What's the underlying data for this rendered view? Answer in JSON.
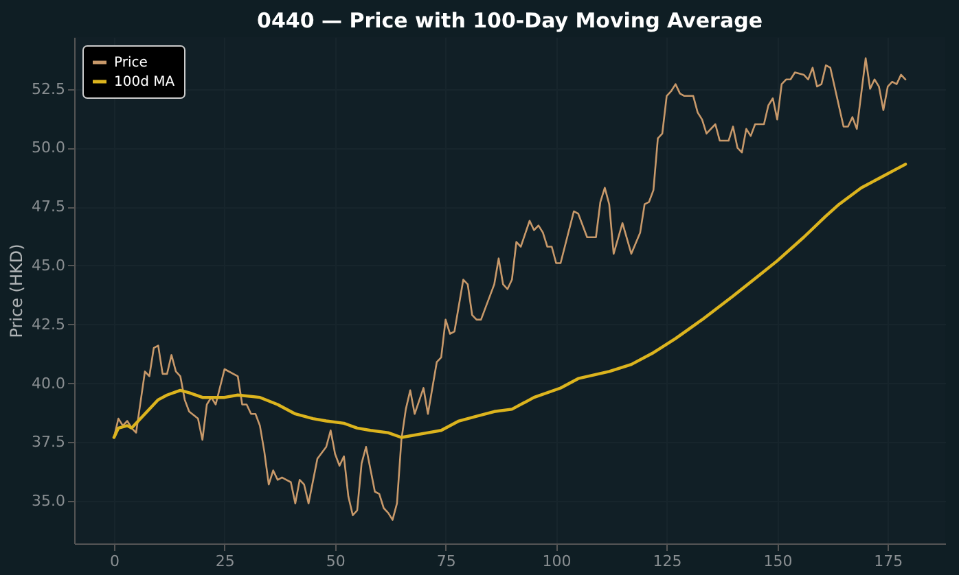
{
  "chart_data": {
    "type": "line",
    "title": "0440 — Price with 100-Day Moving Average",
    "ylabel": "Price (HKD)",
    "xlim": [
      -9,
      188
    ],
    "ylim": [
      33.2,
      54.7
    ],
    "xticks": [
      0,
      25,
      50,
      75,
      100,
      125,
      150,
      175
    ],
    "yticks": [
      {
        "value": 35,
        "label": "35.0"
      },
      37.5,
      {
        "value": 40,
        "label": "40.0"
      },
      42.5,
      {
        "value": 45,
        "label": "45.0"
      },
      47.5,
      {
        "value": 50,
        "label": "50.0"
      },
      52.5
    ],
    "grid": true,
    "legend": "top left",
    "series": [
      {
        "name": "Price",
        "color": "#c8996a",
        "x": [
          0,
          1,
          2,
          3,
          4,
          5,
          7,
          8,
          9,
          10,
          11,
          12,
          13,
          14,
          15,
          16,
          17,
          19,
          20,
          21,
          22,
          23,
          25,
          28,
          29,
          30,
          31,
          32,
          33,
          34,
          35,
          36,
          37,
          38,
          39,
          40,
          41,
          42,
          43,
          44,
          46,
          48,
          49,
          50,
          51,
          52,
          53,
          54,
          55,
          56,
          57,
          59,
          60,
          61,
          62,
          63,
          64,
          65,
          66,
          67,
          68,
          70,
          71,
          73,
          74,
          75,
          76,
          77,
          79,
          80,
          81,
          82,
          83,
          85,
          86,
          87,
          88,
          89,
          90,
          91,
          92,
          94,
          95,
          96,
          97,
          98,
          99,
          100,
          101,
          104,
          105,
          107,
          108,
          109,
          110,
          111,
          112,
          113,
          115,
          117,
          119,
          120,
          121,
          122,
          123,
          124,
          125,
          126,
          127,
          128,
          129,
          131,
          132,
          133,
          134,
          136,
          137,
          139,
          140,
          141,
          142,
          143,
          144,
          145,
          146,
          147,
          148,
          149,
          150,
          151,
          152,
          153,
          154,
          156,
          157,
          158,
          159,
          160,
          161,
          162,
          165,
          166,
          167,
          168,
          170,
          171,
          172,
          173,
          174,
          175,
          176,
          177,
          178,
          179
        ],
        "values": [
          37.7,
          38.5,
          38.2,
          38.4,
          38.1,
          37.9,
          40.5,
          40.3,
          41.5,
          41.6,
          40.4,
          40.4,
          41.2,
          40.5,
          40.3,
          39.3,
          38.8,
          38.5,
          37.6,
          39.1,
          39.4,
          39.1,
          40.6,
          40.3,
          39.1,
          39.1,
          38.7,
          38.7,
          38.2,
          37.1,
          35.7,
          36.3,
          35.9,
          36.0,
          35.9,
          35.8,
          34.9,
          35.9,
          35.7,
          34.9,
          36.8,
          37.3,
          38.0,
          37.0,
          36.5,
          36.9,
          35.2,
          34.4,
          34.6,
          36.6,
          37.3,
          35.4,
          35.3,
          34.7,
          34.5,
          34.2,
          34.9,
          37.6,
          38.9,
          39.7,
          38.7,
          39.8,
          38.7,
          40.9,
          41.1,
          42.7,
          42.1,
          42.2,
          44.4,
          44.2,
          42.9,
          42.7,
          42.7,
          43.7,
          44.2,
          45.3,
          44.2,
          44.0,
          44.4,
          46.0,
          45.8,
          46.9,
          46.5,
          46.7,
          46.4,
          45.8,
          45.8,
          45.1,
          45.1,
          47.3,
          47.2,
          46.2,
          46.2,
          46.2,
          47.7,
          48.3,
          47.6,
          45.5,
          46.8,
          45.5,
          46.4,
          47.6,
          47.7,
          48.2,
          50.4,
          50.6,
          52.2,
          52.4,
          52.7,
          52.3,
          52.2,
          52.2,
          51.5,
          51.2,
          50.6,
          51.0,
          50.3,
          50.3,
          50.9,
          50.0,
          49.8,
          50.8,
          50.5,
          51.0,
          51.0,
          51.0,
          51.8,
          52.1,
          51.2,
          52.7,
          52.9,
          52.9,
          53.2,
          53.1,
          52.9,
          53.4,
          52.6,
          52.7,
          53.5,
          53.4,
          50.9,
          50.9,
          51.3,
          50.8,
          53.8,
          52.5,
          52.9,
          52.6,
          51.6,
          52.6,
          52.8,
          52.7,
          53.1,
          52.9
        ]
      },
      {
        "name": "100d MA",
        "color": "#dcb41e",
        "x": [
          0,
          1,
          3,
          4,
          6,
          8,
          10,
          12,
          15,
          17,
          20,
          25,
          28,
          33,
          37,
          41,
          45,
          48,
          52,
          55,
          58,
          62,
          65,
          71,
          74,
          78,
          82,
          86,
          90,
          95,
          101,
          105,
          112,
          117,
          122,
          127,
          133,
          140,
          146,
          150,
          156,
          161,
          164,
          169,
          173,
          179
        ],
        "values": [
          37.7,
          38.1,
          38.2,
          38.1,
          38.5,
          38.9,
          39.3,
          39.5,
          39.7,
          39.6,
          39.4,
          39.4,
          39.5,
          39.4,
          39.1,
          38.7,
          38.5,
          38.4,
          38.3,
          38.1,
          38.0,
          37.9,
          37.7,
          37.9,
          38.0,
          38.4,
          38.6,
          38.8,
          38.9,
          39.4,
          39.8,
          40.2,
          40.5,
          40.8,
          41.3,
          41.9,
          42.7,
          43.7,
          44.6,
          45.2,
          46.2,
          47.1,
          47.6,
          48.3,
          48.7,
          49.3
        ]
      }
    ]
  }
}
